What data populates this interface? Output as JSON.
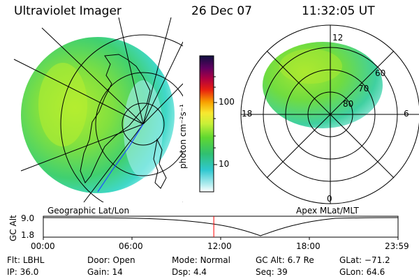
{
  "header": {
    "instrument": "Ultraviolet Imager",
    "date": "26 Dec 07",
    "time": "11:32:05 UT"
  },
  "colorbar": {
    "unit_label": "photon cm⁻²s⁻¹",
    "ticks": [
      "100",
      "10"
    ]
  },
  "polar": {
    "mlt_labels": {
      "top": "12",
      "left": "18",
      "right": "6",
      "bottom": "0"
    },
    "lat_labels": [
      "60",
      "70",
      "80"
    ]
  },
  "projections": {
    "left_label": "Geographic Lat/Lon",
    "right_label": "Apex MLat/MLT"
  },
  "altitude_plot": {
    "axis_label": "GC Alt",
    "y_ticks": [
      "9.0",
      "1.8"
    ],
    "x_ticks": [
      "00:00",
      "06:00",
      "12:00",
      "18:00",
      "23:59"
    ],
    "current_time_fraction": 0.4806
  },
  "status": {
    "filter": {
      "label": "Flt:",
      "value": "LBHL"
    },
    "door": {
      "label": "Door:",
      "value": "Open"
    },
    "mode": {
      "label": "Mode:",
      "value": "Normal"
    },
    "gc_alt": {
      "label": "GC Alt:",
      "value": "6.7 Re"
    },
    "glat": {
      "label": "GLat:",
      "value": "−71.2"
    },
    "ip": {
      "label": "IP:",
      "value": "36.0"
    },
    "gain": {
      "label": "Gain:",
      "value": "14"
    },
    "dsp": {
      "label": "Dsp:",
      "value": "4.4"
    },
    "seq": {
      "label": "Seq:",
      "value": "39"
    },
    "glon": {
      "label": "GLon:",
      "value": "64.6"
    }
  },
  "colors": {
    "green": "#7ae03a",
    "yellow_green": "#b8ef30",
    "cyan": "#30d8d8",
    "light_cyan": "#a8f0f0",
    "marker": "#ff0000",
    "track": "#2050ff"
  }
}
